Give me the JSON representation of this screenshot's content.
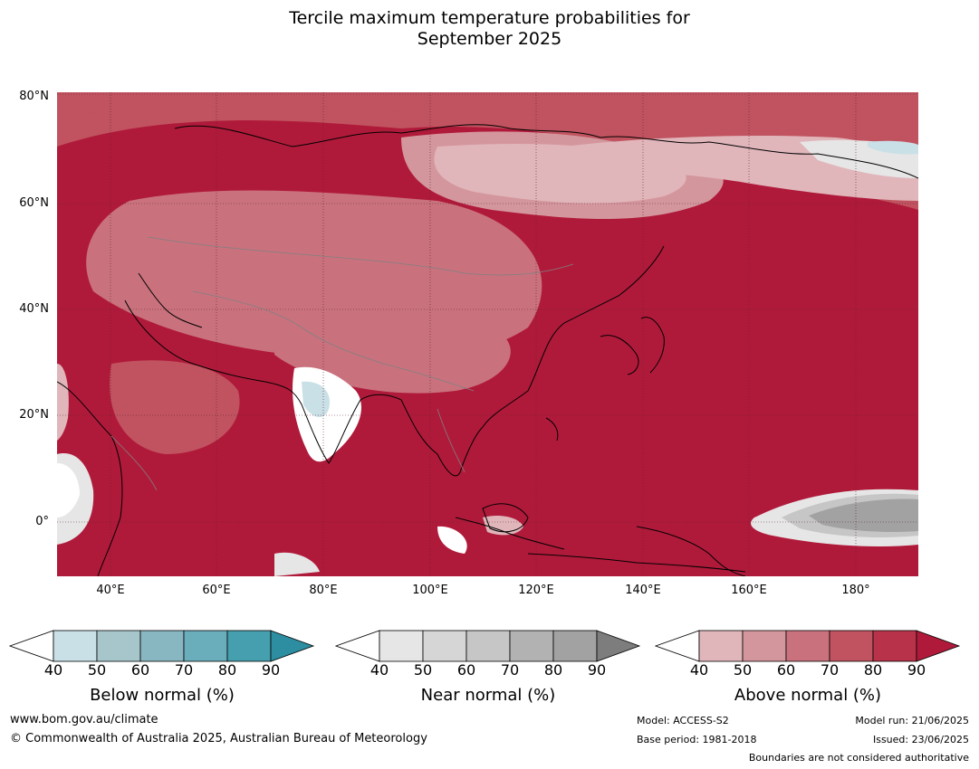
{
  "title_line1": "Tercile maximum temperature probabilities for",
  "title_line2": "September 2025",
  "lat_labels": [
    "80°N",
    "60°N",
    "40°N",
    "20°N",
    "0°"
  ],
  "lon_labels": [
    "40°E",
    "60°E",
    "80°E",
    "100°E",
    "120°E",
    "140°E",
    "160°E",
    "180°"
  ],
  "colorbars": [
    {
      "label": "Below normal (%)",
      "ticks": [
        "40",
        "50",
        "60",
        "70",
        "80",
        "90"
      ],
      "colors": [
        "#c9e0e6",
        "#a6c6cc",
        "#88b6c1",
        "#6aaebb",
        "#459fae",
        "#2c8ea0"
      ]
    },
    {
      "label": "Near normal (%)",
      "ticks": [
        "40",
        "50",
        "60",
        "70",
        "80",
        "90"
      ],
      "colors": [
        "#e6e6e6",
        "#d6d6d6",
        "#c6c6c6",
        "#b2b2b2",
        "#a2a2a2",
        "#7d7d7d"
      ]
    },
    {
      "label": "Above normal (%)",
      "ticks": [
        "40",
        "50",
        "60",
        "70",
        "80",
        "90"
      ],
      "colors": [
        "#e0b6bb",
        "#d4969d",
        "#c9727d",
        "#c0535f",
        "#b83349",
        "#b01a3a"
      ]
    }
  ],
  "footer": {
    "website": "www.bom.gov.au/climate",
    "copyright": "© Commonwealth of Australia 2025, Australian Bureau of Meteorology",
    "model": "Model: ACCESS-S2",
    "base_period": "Base period: 1981-2018",
    "model_run": "Model run: 21/06/2025",
    "issued": "Issued: 23/06/2025",
    "disclaimer": "Boundaries are not considered authoritative"
  }
}
